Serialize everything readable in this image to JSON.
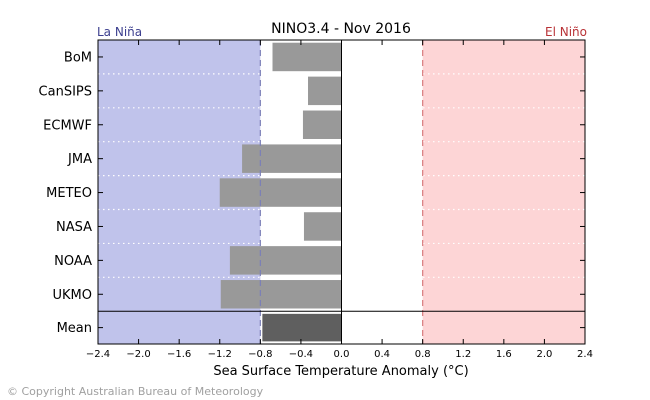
{
  "chart_data": {
    "type": "bar",
    "orientation": "horizontal",
    "title": "NINO3.4 - Nov 2016",
    "xlabel": "Sea Surface Temperature Anomaly (°C)",
    "ylabel": "",
    "xlim": [
      -2.4,
      2.4
    ],
    "xticks": [
      -2.4,
      -2.0,
      -1.6,
      -1.2,
      -0.8,
      -0.4,
      0.0,
      0.4,
      0.8,
      1.2,
      1.6,
      2.0,
      2.4
    ],
    "xtick_labels": [
      "−2.4",
      "−2.0",
      "−1.6",
      "−1.2",
      "−0.8",
      "−0.4",
      "0.0",
      "0.4",
      "0.8",
      "1.2",
      "1.6",
      "2.0",
      "2.4"
    ],
    "categories": [
      "BoM",
      "CanSIPS",
      "ECMWF",
      "JMA",
      "METEO",
      "NASA",
      "NOAA",
      "UKMO",
      "Mean"
    ],
    "values": [
      -0.68,
      -0.33,
      -0.38,
      -0.98,
      -1.2,
      -0.37,
      -1.1,
      -1.19,
      -0.78
    ],
    "la_nina_threshold": -0.8,
    "el_nino_threshold": 0.8,
    "la_nina_label": "La Niña",
    "el_nino_label": "El Niño",
    "grid": "horizontal dotted separators",
    "colors": {
      "la_nina_region": "#c0c3eb",
      "el_nino_region": "#fdd5d6",
      "model_bar": "#999999",
      "mean_bar": "#5f5f5f",
      "la_nina_text": "#3c3f8f",
      "el_nino_text": "#b83236",
      "la_nina_line": "#7b7fb8",
      "el_nino_line": "#d77b7e"
    }
  },
  "copyright": "© Copyright Australian Bureau of Meteorology"
}
